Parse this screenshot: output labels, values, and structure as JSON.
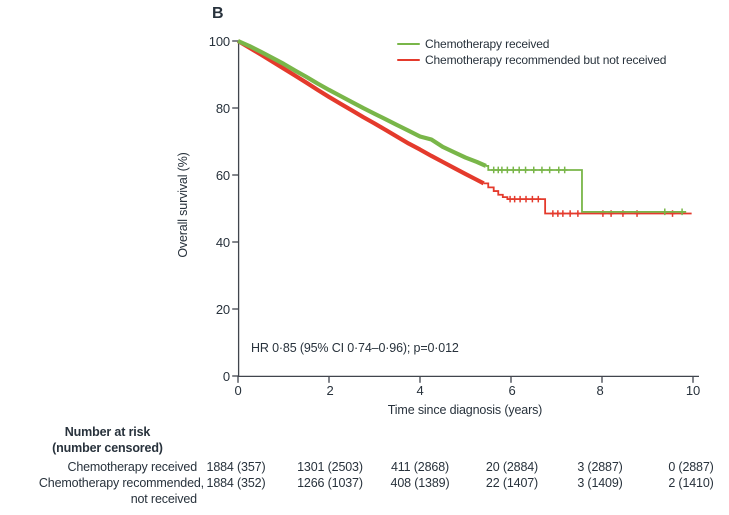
{
  "panel_label": "B",
  "chart_data": {
    "type": "line",
    "chart_style": "kaplan-meier step curves with plus-shaped censor marks",
    "title": "",
    "xlabel": "Time since diagnosis (years)",
    "ylabel": "Overall survival (%)",
    "xlim": [
      0,
      10
    ],
    "ylim": [
      0,
      100
    ],
    "xticks": [
      0,
      2,
      4,
      6,
      8,
      10
    ],
    "yticks": [
      100,
      80,
      60,
      40,
      20,
      0
    ],
    "grid": "off",
    "legend_position": "top-right-inside",
    "annotation": "HR 0·85 (95% CI 0·74–0·96); p=0·012",
    "axis_color": "#40454d",
    "series": [
      {
        "name": "Chemotherapy received",
        "color": "#79b649",
        "descent_points": [
          [
            0,
            100
          ],
          [
            0.25,
            98.5
          ],
          [
            0.5,
            96.8
          ],
          [
            0.75,
            95.0
          ],
          [
            1,
            93.2
          ],
          [
            1.25,
            91.2
          ],
          [
            1.5,
            89.3
          ],
          [
            1.75,
            87.3
          ],
          [
            2,
            85.4
          ],
          [
            2.25,
            83.6
          ],
          [
            2.5,
            81.8
          ],
          [
            2.75,
            80.0
          ],
          [
            3,
            78.3
          ],
          [
            3.25,
            76.6
          ],
          [
            3.5,
            74.9
          ],
          [
            3.75,
            73.2
          ],
          [
            4,
            71.5
          ],
          [
            4.25,
            70.6
          ],
          [
            4.5,
            68.4
          ],
          [
            4.75,
            66.8
          ],
          [
            5,
            65.2
          ],
          [
            5.25,
            63.9
          ],
          [
            5.45,
            62.7
          ]
        ],
        "tail_steps": [
          [
            5.5,
            61.5
          ],
          [
            7.56,
            49.0
          ],
          [
            9.85,
            49.0
          ]
        ],
        "censor_marks": [
          [
            5.62,
            61.5
          ],
          [
            5.72,
            61.5
          ],
          [
            5.8,
            61.5
          ],
          [
            5.92,
            61.5
          ],
          [
            6.05,
            61.5
          ],
          [
            6.18,
            61.5
          ],
          [
            6.32,
            61.5
          ],
          [
            6.5,
            61.5
          ],
          [
            6.68,
            61.5
          ],
          [
            6.85,
            61.5
          ],
          [
            7.05,
            61.5
          ],
          [
            7.18,
            61.5
          ],
          [
            9.38,
            49.0
          ],
          [
            9.76,
            49.0
          ]
        ]
      },
      {
        "name": "Chemotherapy recommended but not received",
        "color": "#e43a2c",
        "descent_points": [
          [
            0,
            100
          ],
          [
            0.25,
            98.0
          ],
          [
            0.5,
            96.0
          ],
          [
            0.75,
            93.9
          ],
          [
            1,
            91.8
          ],
          [
            1.25,
            89.7
          ],
          [
            1.5,
            87.6
          ],
          [
            1.75,
            85.4
          ],
          [
            2,
            83.3
          ],
          [
            2.25,
            81.3
          ],
          [
            2.5,
            79.3
          ],
          [
            2.75,
            77.3
          ],
          [
            3,
            75.4
          ],
          [
            3.25,
            73.4
          ],
          [
            3.5,
            71.4
          ],
          [
            3.75,
            69.4
          ],
          [
            4,
            67.6
          ],
          [
            4.25,
            65.7
          ],
          [
            4.5,
            63.9
          ],
          [
            4.75,
            62.1
          ],
          [
            5,
            60.3
          ],
          [
            5.2,
            58.9
          ],
          [
            5.4,
            57.5
          ]
        ],
        "tail_steps": [
          [
            5.5,
            56.3
          ],
          [
            5.62,
            55.2
          ],
          [
            5.72,
            54.1
          ],
          [
            5.82,
            53.4
          ],
          [
            5.92,
            52.8
          ],
          [
            6.75,
            48.5
          ],
          [
            9.97,
            48.5
          ]
        ],
        "censor_marks": [
          [
            5.98,
            52.8
          ],
          [
            6.08,
            52.8
          ],
          [
            6.2,
            52.8
          ],
          [
            6.33,
            52.8
          ],
          [
            6.47,
            52.8
          ],
          [
            6.6,
            52.8
          ],
          [
            6.92,
            48.5
          ],
          [
            7.03,
            48.5
          ],
          [
            7.14,
            48.5
          ],
          [
            7.3,
            48.5
          ],
          [
            7.47,
            48.5
          ],
          [
            8.02,
            48.5
          ],
          [
            8.2,
            48.5
          ],
          [
            8.46,
            48.5
          ],
          [
            8.77,
            48.5
          ],
          [
            9.55,
            48.5
          ]
        ]
      }
    ]
  },
  "risk_table": {
    "header_line1": "Number at risk",
    "header_line2": "(number censored)",
    "time_points": [
      0,
      2,
      4,
      6,
      8,
      10
    ],
    "rows": [
      {
        "label_line1": "Chemotherapy received",
        "label_line2": "",
        "values": [
          "1884 (357)",
          "1301 (2503)",
          "411 (2868)",
          "20 (2884)",
          "3 (2887)",
          "0 (2887)"
        ]
      },
      {
        "label_line1": "Chemotherapy recommended,",
        "label_line2": "not received",
        "values": [
          "1884 (352)",
          "1266 (1037)",
          "408 (1389)",
          "22 (1407)",
          "3 (1409)",
          "2 (1410)"
        ]
      }
    ]
  }
}
